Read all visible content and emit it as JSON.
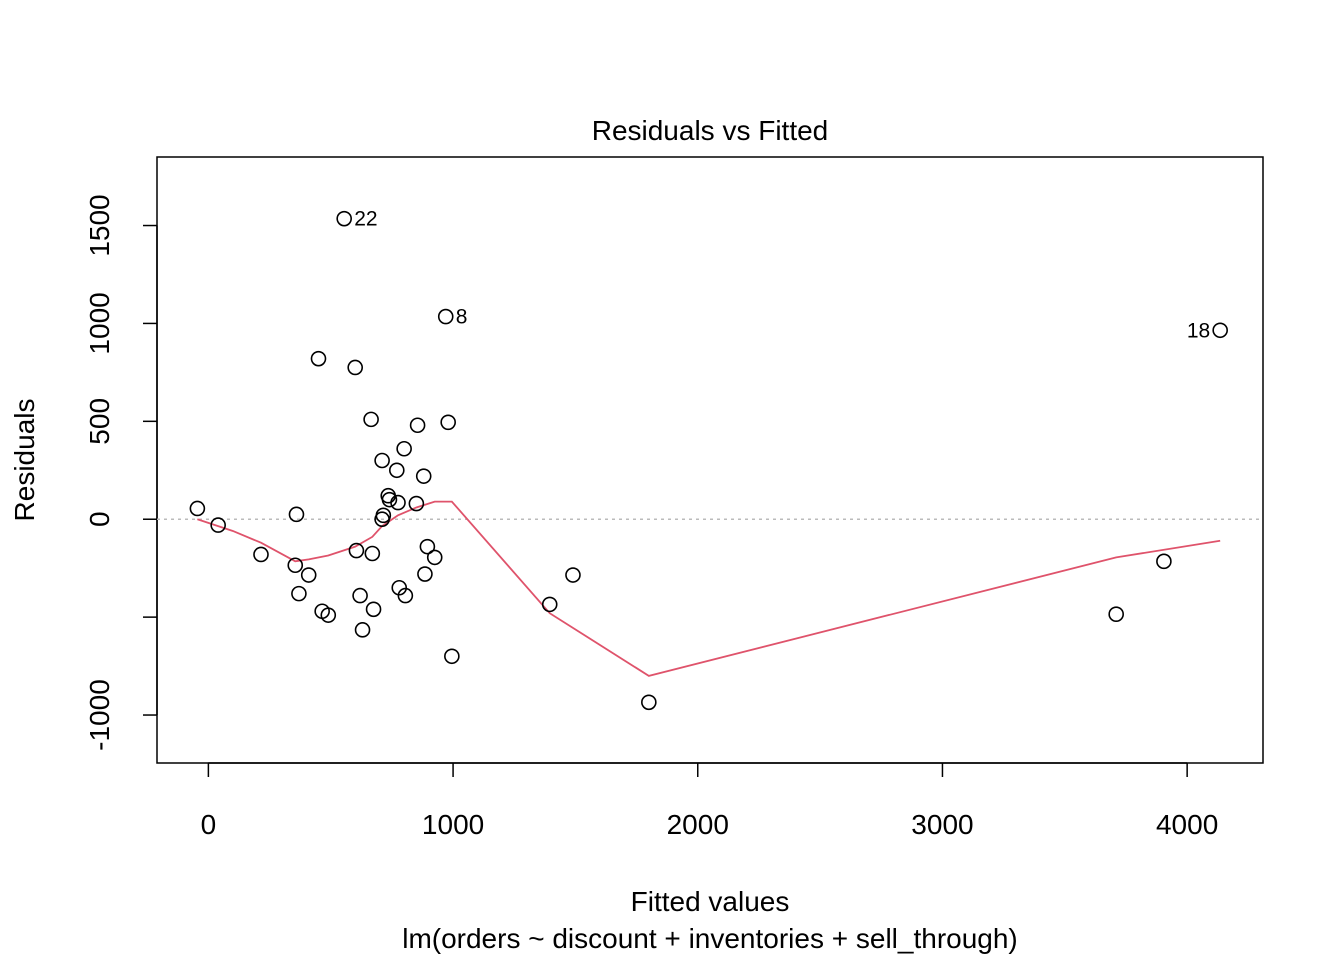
{
  "chart_data": {
    "type": "scatter",
    "title": "Residuals vs Fitted",
    "xlabel": "Fitted values",
    "sublabel": "lm(orders ~ discount + inventories + sell_through)",
    "ylabel": "Residuals",
    "xlim": [
      -210,
      4310
    ],
    "ylim": [
      -1245,
      1850
    ],
    "x_ticks": [
      0,
      1000,
      2000,
      3000,
      4000
    ],
    "x_tick_labels": [
      "0",
      "1000",
      "2000",
      "3000",
      "4000"
    ],
    "y_ticks": [
      -1000,
      -500,
      0,
      500,
      1000,
      1500
    ],
    "y_tick_labels": [
      "-1000",
      "",
      "0",
      "500",
      "1000",
      "1500"
    ],
    "points": [
      {
        "x": -45,
        "y": 55
      },
      {
        "x": 40,
        "y": -30
      },
      {
        "x": 215,
        "y": -180
      },
      {
        "x": 355,
        "y": -235
      },
      {
        "x": 360,
        "y": 25
      },
      {
        "x": 370,
        "y": -380
      },
      {
        "x": 410,
        "y": -285
      },
      {
        "x": 450,
        "y": 820
      },
      {
        "x": 465,
        "y": -470
      },
      {
        "x": 490,
        "y": -490
      },
      {
        "x": 555,
        "y": 1535,
        "label": "22"
      },
      {
        "x": 600,
        "y": 775
      },
      {
        "x": 605,
        "y": -160
      },
      {
        "x": 620,
        "y": -390
      },
      {
        "x": 630,
        "y": -565
      },
      {
        "x": 665,
        "y": 510
      },
      {
        "x": 670,
        "y": -175
      },
      {
        "x": 675,
        "y": -460
      },
      {
        "x": 710,
        "y": 300
      },
      {
        "x": 710,
        "y": 0
      },
      {
        "x": 715,
        "y": 20
      },
      {
        "x": 735,
        "y": 120
      },
      {
        "x": 740,
        "y": 100
      },
      {
        "x": 770,
        "y": 250
      },
      {
        "x": 775,
        "y": 85
      },
      {
        "x": 780,
        "y": -350
      },
      {
        "x": 800,
        "y": 360
      },
      {
        "x": 805,
        "y": -390
      },
      {
        "x": 850,
        "y": 80
      },
      {
        "x": 855,
        "y": 480
      },
      {
        "x": 880,
        "y": 220
      },
      {
        "x": 885,
        "y": -280
      },
      {
        "x": 895,
        "y": -140
      },
      {
        "x": 925,
        "y": -195
      },
      {
        "x": 970,
        "y": 1035,
        "label": "8"
      },
      {
        "x": 980,
        "y": 495
      },
      {
        "x": 995,
        "y": -700
      },
      {
        "x": 1395,
        "y": -435
      },
      {
        "x": 1490,
        "y": -285
      },
      {
        "x": 1800,
        "y": -935
      },
      {
        "x": 3710,
        "y": -485
      },
      {
        "x": 3905,
        "y": -215
      },
      {
        "x": 4135,
        "y": 965,
        "label": "18"
      }
    ],
    "smooth": {
      "x": [
        -45,
        100,
        215,
        355,
        410,
        490,
        600,
        670,
        710,
        775,
        850,
        925,
        995,
        1395,
        1800,
        3710,
        4135
      ],
      "y": [
        0,
        -60,
        -120,
        -215,
        -205,
        -185,
        -140,
        -90,
        -35,
        20,
        60,
        90,
        90,
        -480,
        -800,
        -195,
        -110
      ]
    },
    "reference_line": {
      "y": 0,
      "style": "dotted"
    },
    "grid": false,
    "colors": {
      "points": "#000000",
      "smooth": "#DF536B",
      "reference": "#bbbbbb",
      "axes": "#000000"
    }
  }
}
